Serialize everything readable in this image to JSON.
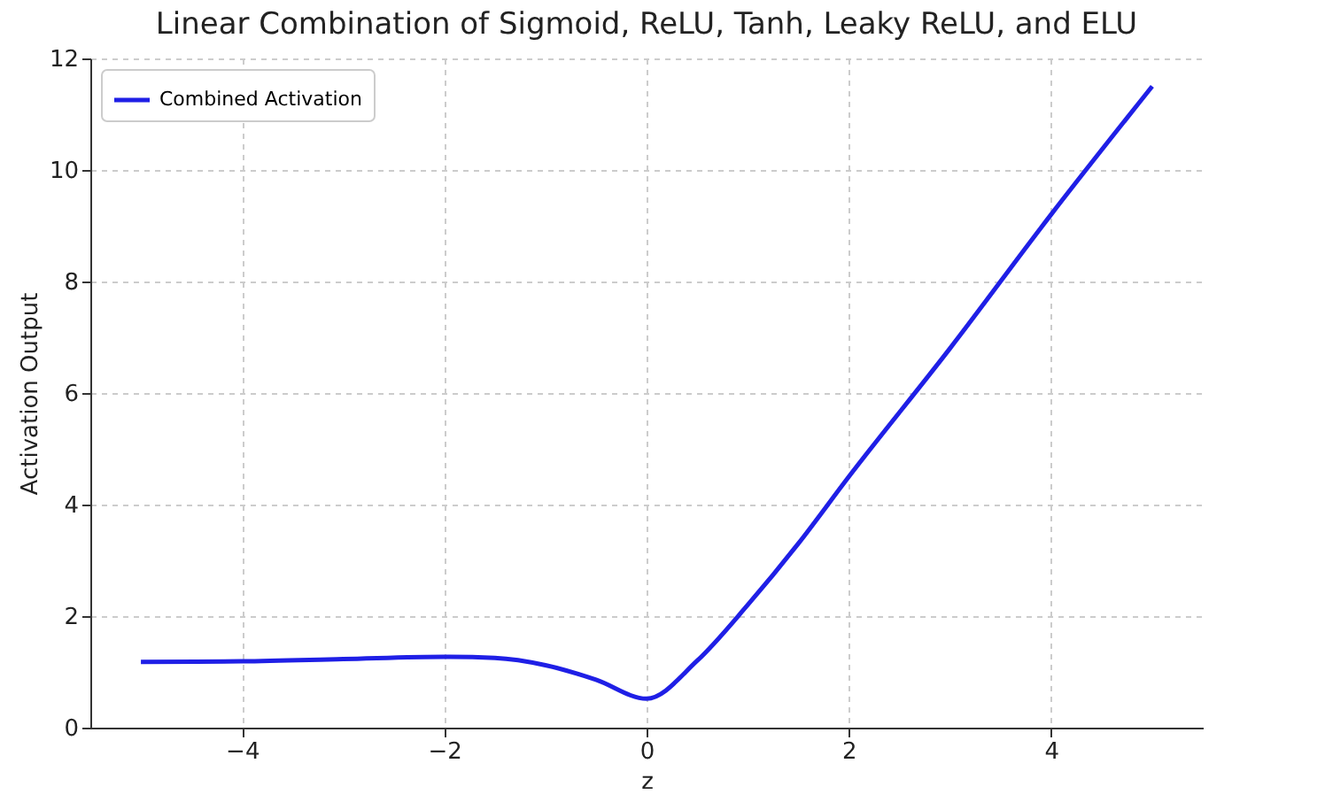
{
  "chart_data": {
    "type": "line",
    "title": "Linear Combination of Sigmoid, ReLU, Tanh, Leaky ReLU, and ELU",
    "xlabel": "z",
    "ylabel": "Activation Output",
    "x": [
      -5,
      -4,
      -3,
      -2,
      -1.5,
      -1,
      -0.5,
      0,
      0.5,
      1,
      1.5,
      2,
      3,
      4,
      5
    ],
    "series": [
      {
        "name": "Combined Activation",
        "color": "#1f1fe6",
        "values": [
          1.18,
          1.19,
          1.23,
          1.27,
          1.25,
          1.12,
          0.86,
          0.52,
          1.2,
          2.2,
          3.3,
          4.5,
          6.8,
          9.2,
          11.5
        ]
      }
    ],
    "xlim": [
      -5.5,
      5.5
    ],
    "xticks": [
      -4,
      -2,
      0,
      2,
      4
    ],
    "ylim": [
      0,
      12
    ],
    "yticks": [
      0,
      2,
      4,
      6,
      8,
      10,
      12
    ],
    "grid": true,
    "legend": "top left",
    "line_style": "solid",
    "marker": "none"
  }
}
